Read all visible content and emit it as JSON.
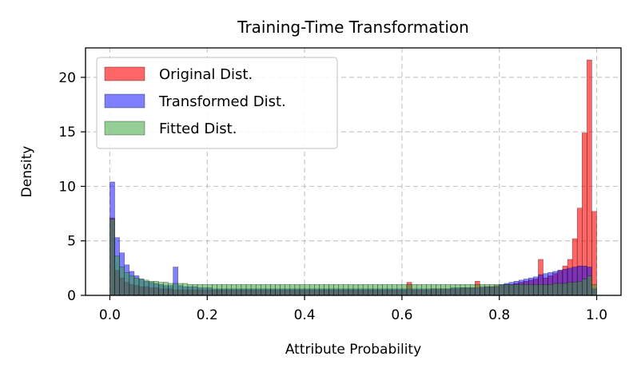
{
  "chart_data": {
    "type": "histogram",
    "title": "Training-Time Transformation",
    "xlabel": "Attribute Probability",
    "ylabel": "Density",
    "xlim": [
      -0.05,
      1.05
    ],
    "ylim": [
      0,
      22.7
    ],
    "xticks": [
      0.0,
      0.2,
      0.4,
      0.6,
      0.8,
      1.0
    ],
    "xtick_labels": [
      "0.0",
      "0.2",
      "0.4",
      "0.6",
      "0.8",
      "1.0"
    ],
    "yticks": [
      0,
      5,
      10,
      15,
      20
    ],
    "ytick_labels": [
      "0",
      "5",
      "10",
      "15",
      "20"
    ],
    "grid": true,
    "legend_position": "top-left",
    "bin_width": 0.01,
    "bin_start": 0.0,
    "series": [
      {
        "name": "Original Dist.",
        "color": "#ff0000",
        "alpha": 0.6,
        "values": [
          7.1,
          2.3,
          1.6,
          1.2,
          1.0,
          0.9,
          0.8,
          0.8,
          0.7,
          0.7,
          0.6,
          0.6,
          0.6,
          0.5,
          0.5,
          0.5,
          0.5,
          0.5,
          0.5,
          0.5,
          0.5,
          0.5,
          0.5,
          0.5,
          0.5,
          0.5,
          0.5,
          0.5,
          0.5,
          0.5,
          0.5,
          0.5,
          0.5,
          0.5,
          0.5,
          0.5,
          0.5,
          0.5,
          0.5,
          0.5,
          0.5,
          0.5,
          0.5,
          0.5,
          0.5,
          0.5,
          0.5,
          0.5,
          0.5,
          0.5,
          0.5,
          0.5,
          0.5,
          0.5,
          0.5,
          0.5,
          0.5,
          0.5,
          0.5,
          0.5,
          0.5,
          1.2,
          0.5,
          0.5,
          0.5,
          0.5,
          0.6,
          0.6,
          0.6,
          0.6,
          0.6,
          0.6,
          0.7,
          0.7,
          0.7,
          1.3,
          0.7,
          0.8,
          0.8,
          0.9,
          0.9,
          1.0,
          1.0,
          1.1,
          1.2,
          1.3,
          1.4,
          1.5,
          3.3,
          1.6,
          1.8,
          2.0,
          2.3,
          2.7,
          3.3,
          5.2,
          8.0,
          14.9,
          21.6,
          7.7
        ]
      },
      {
        "name": "Transformed Dist.",
        "color": "#0000ff",
        "alpha": 0.5,
        "values": [
          10.4,
          5.3,
          3.9,
          2.8,
          2.2,
          1.8,
          1.5,
          1.3,
          1.2,
          1.1,
          1.0,
          0.9,
          0.9,
          2.6,
          0.9,
          0.8,
          0.8,
          0.8,
          0.7,
          0.7,
          0.7,
          0.6,
          0.6,
          0.6,
          0.6,
          0.6,
          0.6,
          0.6,
          0.6,
          0.6,
          0.6,
          0.6,
          0.6,
          0.6,
          0.6,
          0.6,
          0.6,
          0.6,
          0.6,
          0.6,
          0.6,
          0.6,
          0.6,
          0.6,
          0.6,
          0.6,
          0.6,
          0.6,
          0.6,
          0.6,
          0.6,
          0.6,
          0.6,
          0.6,
          0.6,
          0.6,
          0.6,
          0.6,
          0.6,
          0.6,
          0.6,
          0.6,
          0.6,
          0.6,
          0.6,
          0.6,
          0.6,
          0.6,
          0.6,
          0.6,
          0.7,
          0.7,
          0.7,
          0.7,
          0.7,
          0.7,
          0.8,
          0.8,
          0.8,
          0.8,
          1.0,
          1.1,
          1.2,
          1.3,
          1.4,
          1.5,
          1.6,
          1.7,
          1.9,
          2.0,
          2.1,
          2.2,
          2.3,
          2.4,
          2.5,
          2.6,
          2.7,
          2.7,
          2.6,
          0.6
        ]
      },
      {
        "name": "Fitted Dist.",
        "color": "#2ca02c",
        "alpha": 0.5,
        "values": [
          7.0,
          3.6,
          2.6,
          2.1,
          1.8,
          1.6,
          1.5,
          1.4,
          1.3,
          1.3,
          1.2,
          1.2,
          1.1,
          1.1,
          1.1,
          1.1,
          1.0,
          1.0,
          1.0,
          1.0,
          1.0,
          1.0,
          1.0,
          1.0,
          1.0,
          1.0,
          1.0,
          1.0,
          1.0,
          1.0,
          1.0,
          1.0,
          1.0,
          1.0,
          1.0,
          1.0,
          1.0,
          1.0,
          1.0,
          1.0,
          1.0,
          1.0,
          1.0,
          1.0,
          1.0,
          1.0,
          1.0,
          1.0,
          1.0,
          1.0,
          1.0,
          1.0,
          1.0,
          1.0,
          1.0,
          1.0,
          1.0,
          1.0,
          1.0,
          1.0,
          1.0,
          1.0,
          1.0,
          1.0,
          1.0,
          1.0,
          1.0,
          1.0,
          1.0,
          1.0,
          1.0,
          1.0,
          1.0,
          1.0,
          1.0,
          1.0,
          1.0,
          1.0,
          1.0,
          1.0,
          1.0,
          1.0,
          1.0,
          1.0,
          1.0,
          1.0,
          1.0,
          1.0,
          1.0,
          1.0,
          1.0,
          1.1,
          1.1,
          1.1,
          1.2,
          1.2,
          1.3,
          1.5,
          1.8,
          1.0
        ]
      }
    ]
  }
}
